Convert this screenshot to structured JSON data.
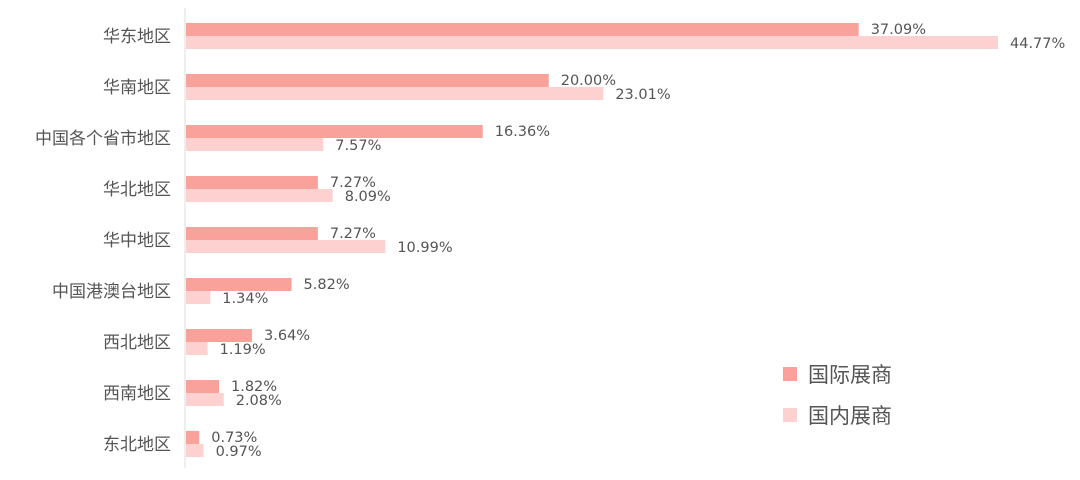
{
  "chart_data": {
    "type": "bar",
    "orientation": "horizontal",
    "categories": [
      "华东地区",
      "华南地区",
      "中国各个省市地区",
      "华北地区",
      "华中地区",
      "中国港澳台地区",
      "西北地区",
      "西南地区",
      "东北地区"
    ],
    "series": [
      {
        "name": "国际展商",
        "color": "#f9a19b",
        "values": [
          37.09,
          20.0,
          16.36,
          7.27,
          7.27,
          5.82,
          3.64,
          1.82,
          0.73
        ],
        "labels": [
          "37.09%",
          "20.00%",
          "16.36%",
          "7.27%",
          "7.27%",
          "5.82%",
          "3.64%",
          "1.82%",
          "0.73%"
        ]
      },
      {
        "name": "国内展商",
        "color": "#fcd1d0",
        "values": [
          44.77,
          23.01,
          7.57,
          8.09,
          10.99,
          1.34,
          1.19,
          2.08,
          0.97
        ],
        "labels": [
          "44.77%",
          "23.01%",
          "7.57%",
          "8.09%",
          "10.99%",
          "1.34%",
          "1.19%",
          "2.08%",
          "0.97%"
        ]
      }
    ],
    "unit": "%",
    "xlim": [
      0,
      44.77
    ],
    "grid": false,
    "legend_position": "bottom-right",
    "label_color": "#555555",
    "axis_color": "#dddddd"
  }
}
